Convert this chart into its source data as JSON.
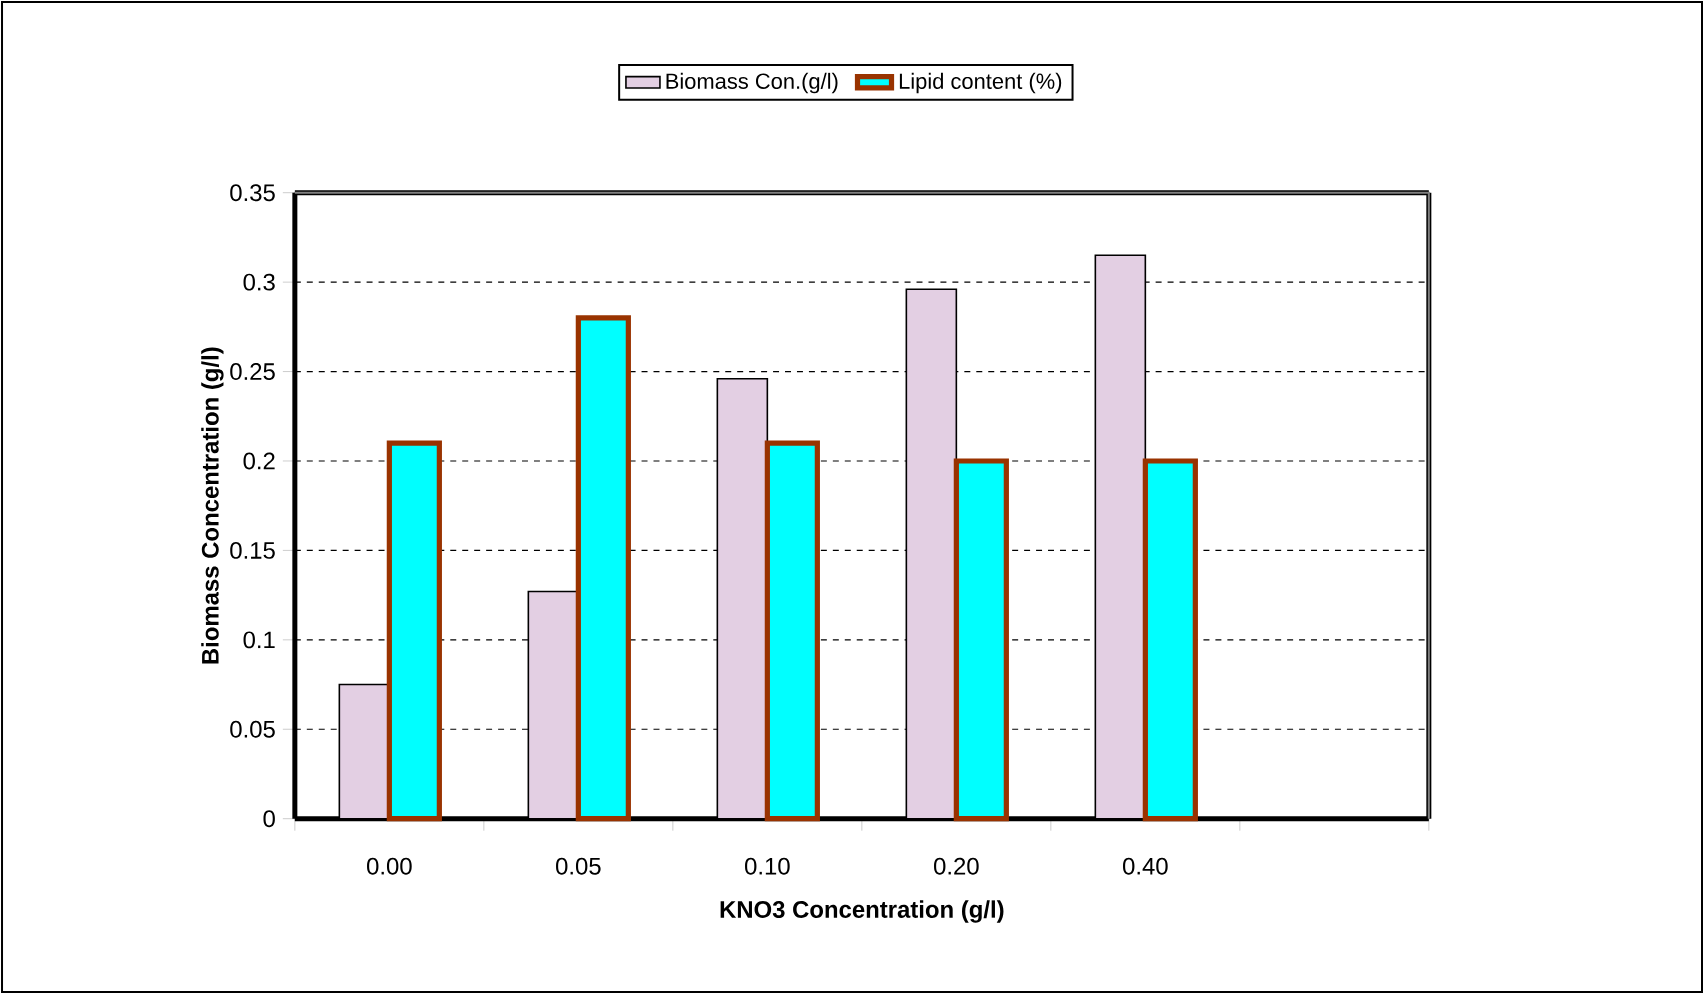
{
  "chart_data": {
    "type": "bar",
    "xlabel": "KNO3 Concentration (g/l)",
    "ylabel": "Biomass Concentration (g/l)",
    "categories": [
      "0.00",
      "0.05",
      "0.10",
      "0.20",
      "0.40",
      null
    ],
    "series": [
      {
        "name": "Biomass Con.(g/l)",
        "color": "#e3cfe3",
        "values": [
          0.075,
          0.127,
          0.246,
          0.296,
          0.315,
          null
        ]
      },
      {
        "name": "Lipid content (%)",
        "color": "#00ffff",
        "values": [
          0.21,
          0.28,
          0.21,
          0.2,
          0.2,
          null
        ]
      }
    ],
    "ylim": [
      0,
      0.35
    ],
    "yticks": [
      0,
      0.05,
      0.1,
      0.15,
      0.2,
      0.25,
      0.3,
      0.35
    ],
    "grid": "y",
    "legend": "top"
  }
}
